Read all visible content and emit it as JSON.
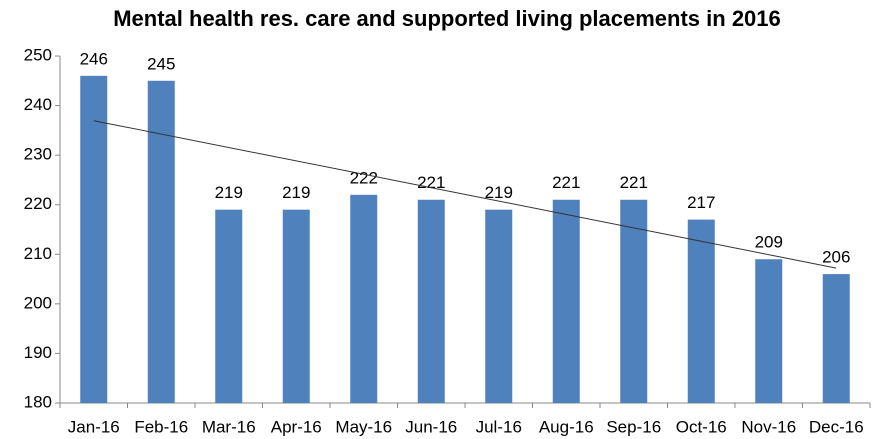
{
  "chart_data": {
    "type": "bar",
    "title": "Mental health res. care and supported living placements in 2016",
    "categories": [
      "Jan-16",
      "Feb-16",
      "Mar-16",
      "Apr-16",
      "May-16",
      "Jun-16",
      "Jul-16",
      "Aug-16",
      "Sep-16",
      "Oct-16",
      "Nov-16",
      "Dec-16"
    ],
    "values": [
      246,
      245,
      219,
      219,
      222,
      221,
      219,
      221,
      221,
      217,
      209,
      206
    ],
    "color": "#4f81bd",
    "ylim": [
      180,
      250
    ],
    "yticks": [
      180,
      190,
      200,
      210,
      220,
      230,
      240,
      250
    ],
    "grid": false,
    "trendline": "linear"
  }
}
